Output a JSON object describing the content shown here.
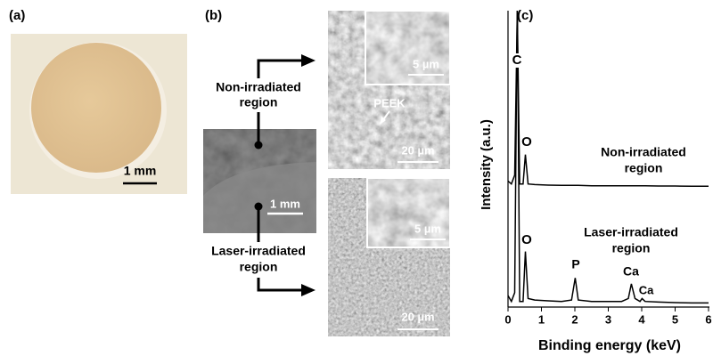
{
  "panel_a": {
    "label": "(a)",
    "scale_bar": "1 mm"
  },
  "panel_b": {
    "label": "(b)",
    "upper_region_label": [
      "Non-irradiated",
      "region"
    ],
    "lower_region_label": [
      "Laser-irradiated",
      "region"
    ],
    "center_scale_bar": "1 mm",
    "upper_inset_scale_bar": "5 µm",
    "upper_scale_bar": "20 µm",
    "upper_annotation": "PEEK",
    "lower_inset_scale_bar": "5 µm",
    "lower_scale_bar": "20 µm"
  },
  "chart_data": {
    "type": "line",
    "label": "(c)",
    "x_label": "Binding energy (keV)",
    "y_label": "Intensity (a.u.)",
    "x": [
      0,
      0.1,
      0.2,
      0.25,
      0.277,
      0.3,
      0.35,
      0.45,
      0.52,
      0.6,
      0.8,
      1.2,
      1.6,
      1.9,
      2.01,
      2.1,
      2.5,
      3,
      3.4,
      3.6,
      3.69,
      3.8,
      3.95,
      4.01,
      4.1,
      4.5,
      5,
      5.5,
      6
    ],
    "series": [
      {
        "name": "Non-irradiated region",
        "color": "#000000",
        "values": [
          42,
          41,
          44,
          80,
          100,
          80,
          41,
          41,
          51,
          41,
          40.8,
          40.6,
          40.5,
          40.5,
          40.5,
          40.5,
          40.4,
          40.4,
          40.4,
          40.4,
          40.4,
          40.4,
          40.4,
          40.4,
          40.4,
          40.3,
          40.3,
          40.2,
          40.2
        ]
      },
      {
        "name": "Laser-irradiated region",
        "color": "#000000",
        "values": [
          3,
          1,
          4,
          70,
          100,
          70,
          1,
          1,
          18,
          2,
          1.5,
          1.2,
          1,
          1.5,
          9,
          1.5,
          1,
          1,
          1,
          2,
          7,
          2,
          1,
          2,
          1,
          0.8,
          0.6,
          0.5,
          0.5
        ]
      }
    ],
    "peak_labels": [
      "C",
      "O",
      "O",
      "P",
      "Ca",
      "Ca"
    ],
    "xlim": [
      0,
      6
    ],
    "xticks": [
      0,
      1,
      2,
      3,
      4,
      5,
      6
    ],
    "ylim": [
      0,
      100
    ]
  }
}
